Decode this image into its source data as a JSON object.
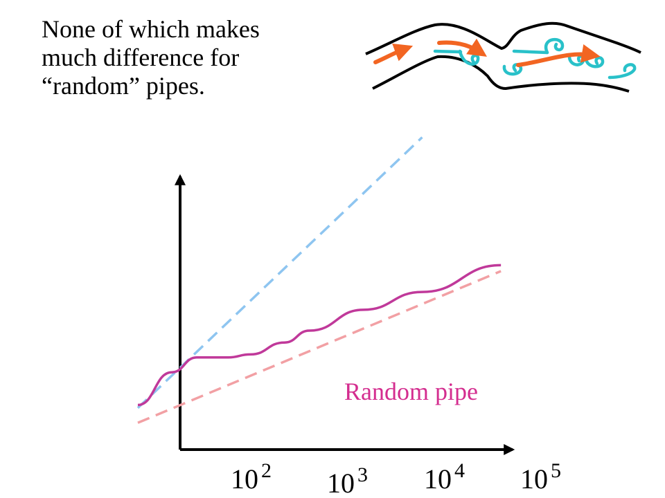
{
  "caption": {
    "lines": [
      "None of which makes",
      "much difference for",
      "“random” pipes."
    ]
  },
  "illustration": {
    "name": "random-pipe-flow",
    "colors": {
      "walls": "#000000",
      "flow_arrows": "#f26522",
      "eddies": "#29c1c9"
    }
  },
  "chart_data": {
    "type": "line",
    "title": "",
    "xlabel": "",
    "ylabel": "",
    "x_scale": "log",
    "y_scale": "log",
    "x_ticks": [
      {
        "base": "10",
        "exp": "2",
        "value": 100
      },
      {
        "base": "10",
        "exp": "3",
        "value": 1000
      },
      {
        "base": "10",
        "exp": "4",
        "value": 10000
      },
      {
        "base": "10",
        "exp": "5",
        "value": 100000
      }
    ],
    "xlim": [
      15,
      120000
    ],
    "ylim": [
      0,
      1
    ],
    "series": [
      {
        "name": "",
        "style": "dashed",
        "color": "#8ec5f0",
        "x": [
          30,
          10000
        ],
        "y": [
          0.14,
          1.05
        ]
      },
      {
        "name": "",
        "style": "dashed",
        "color": "#f2a0a4",
        "x": [
          30,
          50000
        ],
        "y": [
          0.09,
          0.6
        ]
      },
      {
        "name": "Random pipe",
        "style": "solid",
        "color": "#c0399a",
        "x": [
          30,
          60,
          100,
          190,
          300,
          600,
          1000,
          3000,
          10000,
          50000
        ],
        "y": [
          0.15,
          0.26,
          0.31,
          0.31,
          0.32,
          0.36,
          0.4,
          0.47,
          0.53,
          0.62
        ]
      }
    ],
    "annotations": [
      {
        "text": "Random pipe",
        "color": "#d42d8f"
      }
    ]
  }
}
